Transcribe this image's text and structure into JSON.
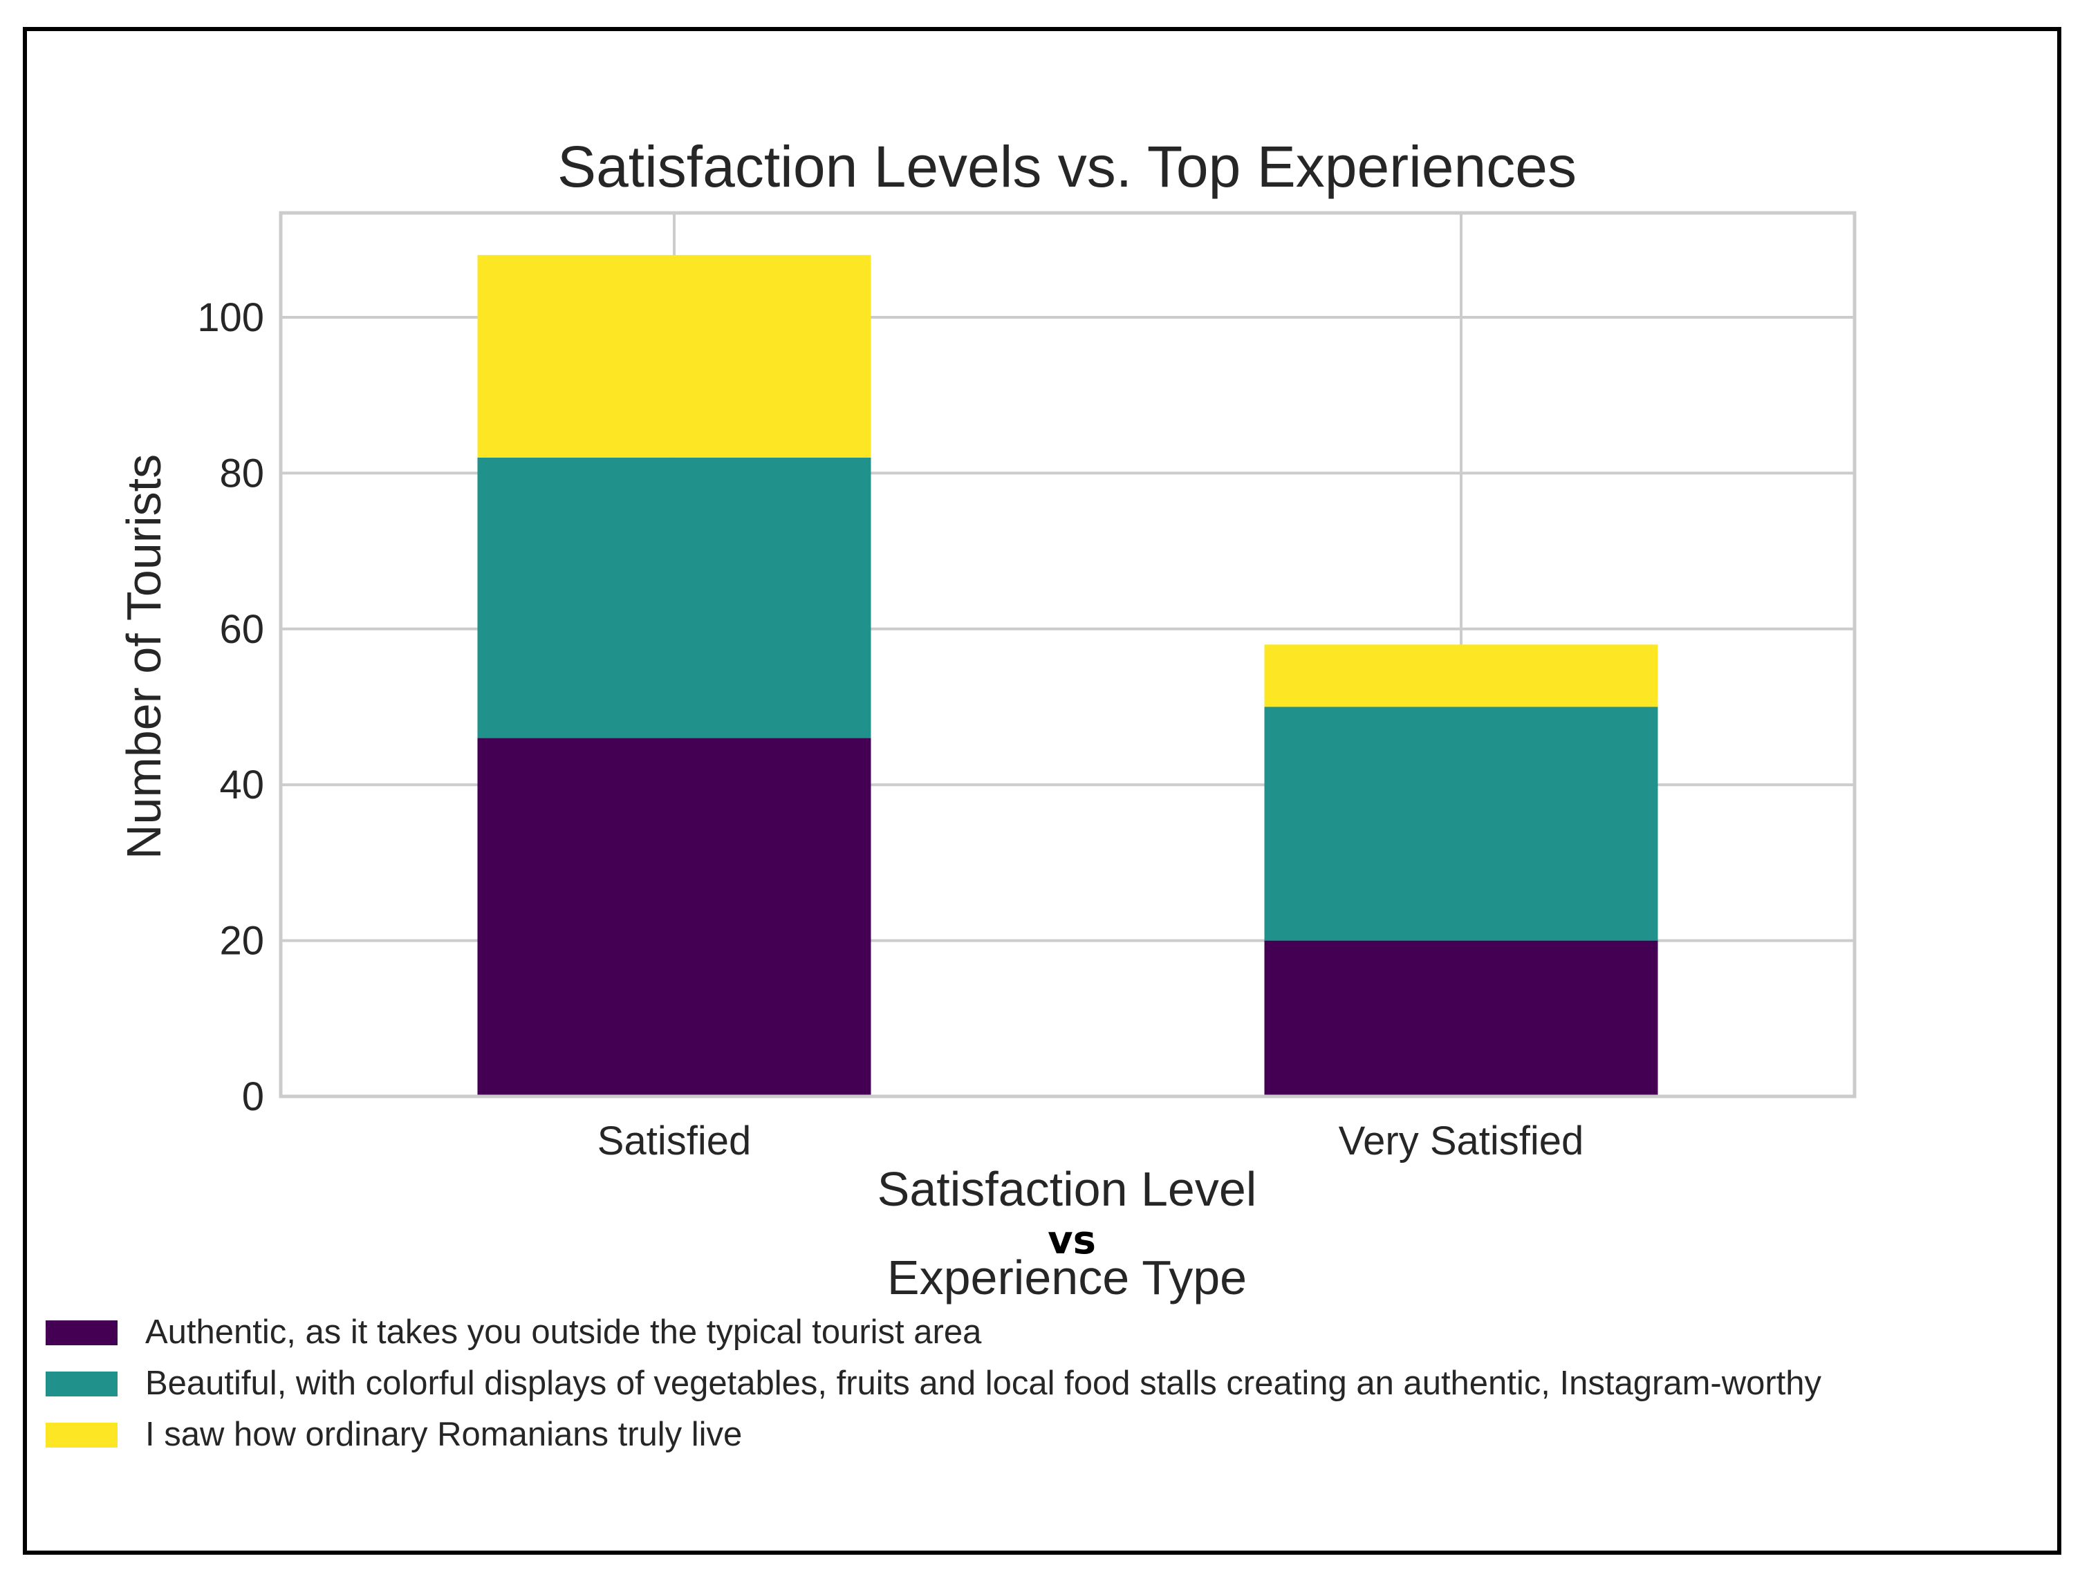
{
  "chart_data": {
    "type": "bar",
    "stacked": true,
    "title": "Satisfaction Levels vs. Top Experiences",
    "xlabel": "Satisfaction Level",
    "xlabel_vs": "vs",
    "xlabel_sub": "Experience Type",
    "ylabel": "Number of Tourists",
    "ylim": [
      0,
      113.4
    ],
    "yticks": [
      0,
      20,
      40,
      60,
      80,
      100
    ],
    "grid": true,
    "legend_position": "bottom-left",
    "categories": [
      "Satisfied",
      "Very Satisfied"
    ],
    "series": [
      {
        "name": "Authentic, as it takes you outside the typical tourist area",
        "color": "#440154",
        "values": [
          46,
          20
        ]
      },
      {
        "name": "Beautiful, with colorful displays of vegetables, fruits and local food stalls creating an authentic, Instagram-worthy",
        "color": "#21918c",
        "values": [
          36,
          30
        ]
      },
      {
        "name": "I saw how ordinary Romanians truly live",
        "color": "#fde725",
        "values": [
          26,
          8
        ]
      }
    ]
  }
}
